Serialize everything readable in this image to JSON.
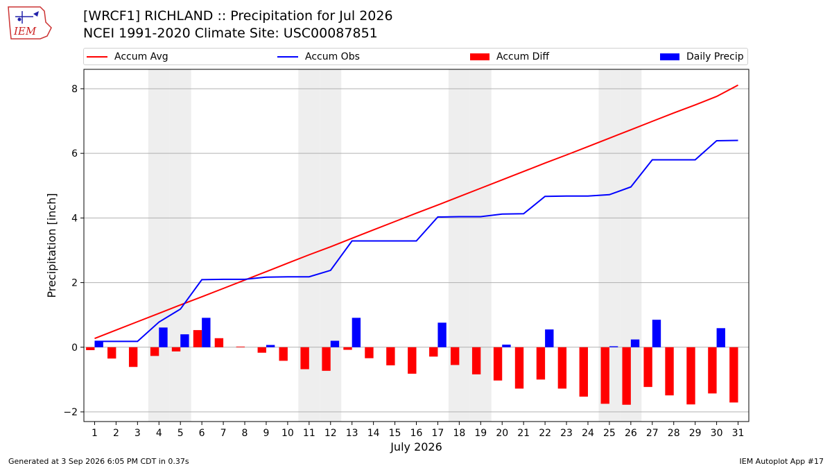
{
  "header": {
    "title_line1": "[WRCF1] RICHLAND :: Precipitation for Jul 2026",
    "title_line2": "NCEI 1991-2020 Climate Site: USC00087851",
    "logo_text": "IEM"
  },
  "footer": {
    "left": "Generated at 3 Sep 2026 6:05 PM CDT in 0.37s",
    "right": "IEM Autoplot App #17"
  },
  "colors": {
    "accum_avg": "#ff0000",
    "accum_obs": "#0000ff",
    "accum_diff": "#ff0000",
    "daily_precip": "#0000ff",
    "weekend_shade": "#eeeeee",
    "grid": "#b0b0b0"
  },
  "chart_data": {
    "type": "bar",
    "title": "[WRCF1] RICHLAND :: Precipitation for Jul 2026",
    "subtitle": "NCEI 1991-2020 Climate Site: USC00087851",
    "xlabel": "July 2026",
    "ylabel": "Precipitation [inch]",
    "ylim": [
      -2.3,
      8.6
    ],
    "yticks": [
      -2,
      0,
      2,
      4,
      6,
      8
    ],
    "ytick_labels": [
      "−2",
      "0",
      "2",
      "4",
      "6",
      "8"
    ],
    "grid": "horizontal",
    "legend_position": "top",
    "legend": [
      "Accum Avg",
      "Accum Obs",
      "Accum Diff",
      "Daily Precip"
    ],
    "weekend_days": [
      4,
      5,
      11,
      12,
      18,
      19,
      25,
      26
    ],
    "x": [
      1,
      2,
      3,
      4,
      5,
      6,
      7,
      8,
      9,
      10,
      11,
      12,
      13,
      14,
      15,
      16,
      17,
      18,
      19,
      20,
      21,
      22,
      23,
      24,
      25,
      26,
      27,
      28,
      29,
      30,
      31
    ],
    "series": [
      {
        "name": "Accum Avg",
        "kind": "line",
        "values": [
          0.27,
          0.53,
          0.79,
          1.05,
          1.31,
          1.56,
          1.82,
          2.08,
          2.34,
          2.6,
          2.86,
          3.11,
          3.37,
          3.63,
          3.89,
          4.15,
          4.4,
          4.66,
          4.92,
          5.18,
          5.44,
          5.7,
          5.95,
          6.21,
          6.47,
          6.73,
          6.99,
          7.25,
          7.5,
          7.76,
          8.11
        ]
      },
      {
        "name": "Accum Obs",
        "kind": "line",
        "values": [
          0.18,
          0.18,
          0.18,
          0.78,
          1.18,
          2.09,
          2.1,
          2.1,
          2.17,
          2.18,
          2.18,
          2.38,
          3.29,
          3.29,
          3.29,
          3.29,
          4.03,
          4.04,
          4.04,
          4.12,
          4.13,
          4.67,
          4.68,
          4.68,
          4.72,
          4.96,
          5.8,
          5.8,
          5.8,
          6.39,
          6.4
        ]
      },
      {
        "name": "Accum Diff",
        "kind": "bar",
        "values": [
          -0.09,
          -0.35,
          -0.61,
          -0.27,
          -0.13,
          0.53,
          0.28,
          0.02,
          -0.17,
          -0.42,
          -0.68,
          -0.73,
          -0.08,
          -0.34,
          -0.56,
          -0.82,
          -0.29,
          -0.55,
          -0.84,
          -1.03,
          -1.28,
          -1.0,
          -1.28,
          -1.53,
          -1.75,
          -1.78,
          -1.23,
          -1.49,
          -1.77,
          -1.43,
          -1.71
        ]
      },
      {
        "name": "Daily Precip",
        "kind": "bar",
        "values": [
          0.18,
          0.0,
          0.0,
          0.61,
          0.4,
          0.91,
          0.0,
          0.0,
          0.07,
          0.0,
          0.0,
          0.2,
          0.91,
          0.0,
          0.0,
          0.0,
          0.76,
          0.0,
          0.0,
          0.08,
          0.0,
          0.55,
          0.0,
          0.0,
          0.03,
          0.24,
          0.85,
          0.0,
          0.0,
          0.59,
          0.0
        ]
      }
    ]
  }
}
